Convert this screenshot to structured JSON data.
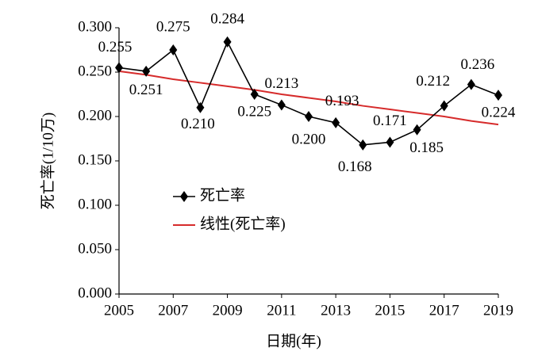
{
  "chart_data": {
    "type": "line",
    "x": [
      2005,
      2006,
      2007,
      2008,
      2009,
      2010,
      2011,
      2012,
      2013,
      2014,
      2015,
      2016,
      2017,
      2018,
      2019
    ],
    "series": [
      {
        "name": "死亡率",
        "color": "#000000",
        "values": [
          0.255,
          0.251,
          0.275,
          0.21,
          0.284,
          0.225,
          0.213,
          0.2,
          0.193,
          0.168,
          0.171,
          0.185,
          0.212,
          0.236,
          0.224
        ],
        "value_labels": [
          "0.255",
          "0.251",
          "0.275",
          "0.210",
          "0.284",
          "0.225",
          "0.213",
          "0.200",
          "0.193",
          "0.168",
          "0.171",
          "0.185",
          "0.212",
          "0.236",
          "0.224"
        ]
      },
      {
        "name": "线性(死亡率)",
        "color": "#d62b2b",
        "values": [
          0.251,
          0.247,
          0.242,
          0.238,
          0.234,
          0.23,
          0.225,
          0.221,
          0.217,
          0.212,
          0.208,
          0.204,
          0.2,
          0.195,
          0.191
        ]
      }
    ],
    "xlabel": "日期(年)",
    "ylabel": "死亡率(1/10万)",
    "xlim": [
      2005,
      2019
    ],
    "xticks": [
      2005,
      2007,
      2009,
      2011,
      2013,
      2015,
      2017,
      2019
    ],
    "ylim": [
      0,
      0.3
    ],
    "yticks": [
      {
        "value": 0,
        "label": "0.000"
      },
      {
        "value": 0.05,
        "label": "0.050"
      },
      {
        "value": 0.1,
        "label": "0.100"
      },
      {
        "value": 0.15,
        "label": "0.150"
      },
      {
        "value": 0.2,
        "label": "0.200"
      },
      {
        "value": 0.25,
        "label": "0.250"
      },
      {
        "value": 0.3,
        "label": "0.300"
      }
    ],
    "grid": false,
    "legend": "center-left"
  }
}
